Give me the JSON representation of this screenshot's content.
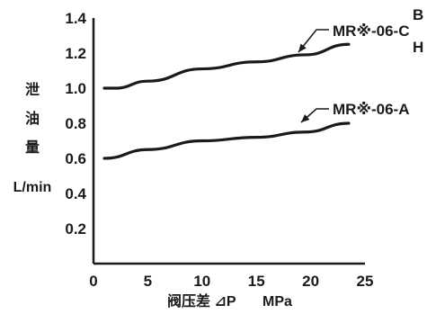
{
  "chart_data": {
    "type": "line",
    "title": "",
    "ylabel_chars": [
      "泄",
      "油",
      "量"
    ],
    "ylabel_unit": "L/min",
    "xlabel": "阀压差 ⊿P",
    "xlabel_unit": "MPa",
    "x_ticks": [
      "0",
      "5",
      "10",
      "15",
      "20",
      "25"
    ],
    "y_ticks": [
      "0.2",
      "0.4",
      "0.6",
      "0.8",
      "1.0",
      "1.2",
      "1.4"
    ],
    "xlim": [
      0,
      25
    ],
    "ylim": [
      0,
      1.4
    ],
    "grid": false,
    "series": [
      {
        "name": "MR※-06-A",
        "x": [
          1,
          5,
          10,
          15,
          19.5,
          23.5
        ],
        "y": [
          0.6,
          0.65,
          0.7,
          0.72,
          0.75,
          0.8
        ]
      },
      {
        "name": "MR※-06-C",
        "x": [
          1,
          2,
          5,
          10,
          15,
          19.5,
          23.5
        ],
        "y": [
          1.0,
          1.0,
          1.04,
          1.11,
          1.15,
          1.19,
          1.25
        ]
      }
    ],
    "annotations": [
      {
        "series": 1,
        "label": "MR※-06-C",
        "extra_above": "B",
        "extra_below": "H"
      },
      {
        "series": 0,
        "label": "MR※-06-A"
      }
    ]
  }
}
